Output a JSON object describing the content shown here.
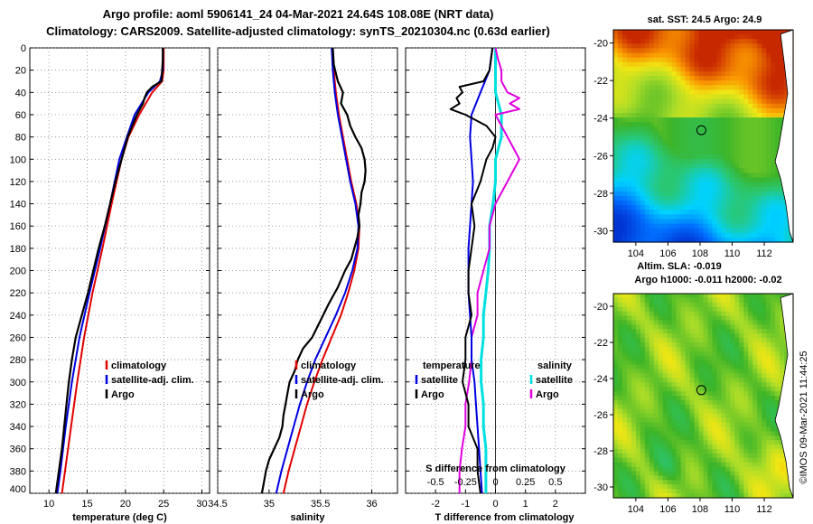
{
  "header": {
    "line1": "Argo profile: aoml 5906141_24 04-Mar-2021 24.64S 108.08E (NRT data)",
    "line2": "Climatology: CARS2009. Satellite-adjusted climatology: synTS_20210304.nc (0.63d earlier)"
  },
  "colors": {
    "climatology": "#e00000",
    "satellite": "#0000e0",
    "argo": "#000000",
    "sat_salinity": "#00e0e0",
    "argo_salinity": "#e000e0"
  },
  "depth_axis": {
    "ticks": [
      "0",
      "20",
      "40",
      "60",
      "80",
      "100",
      "120",
      "140",
      "160",
      "180",
      "200",
      "220",
      "240",
      "260",
      "280",
      "300",
      "320",
      "340",
      "360",
      "380",
      "400"
    ],
    "range": [
      0,
      400
    ]
  },
  "chart_data": [
    {
      "id": "temperature",
      "type": "line",
      "xlabel": "temperature (deg C)",
      "xlim": [
        7.5,
        31
      ],
      "ylim": [
        0,
        400
      ],
      "xticks": [
        10,
        15,
        20,
        25,
        30
      ],
      "xtick_labels": [
        "10",
        "15",
        "20",
        "25",
        "30"
      ],
      "legend": [
        "climatology",
        "satellite-adj. clim.",
        "Argo"
      ],
      "series": [
        {
          "name": "climatology",
          "depth": [
            0,
            20,
            30,
            40,
            60,
            80,
            100,
            140,
            180,
            220,
            260,
            300,
            340,
            380,
            400
          ],
          "values": [
            25.0,
            25.0,
            24.8,
            23.5,
            21.8,
            20.4,
            19.5,
            18.2,
            17.0,
            15.7,
            14.6,
            13.7,
            12.9,
            12.1,
            11.7
          ]
        },
        {
          "name": "satellite-adj. clim.",
          "depth": [
            0,
            20,
            30,
            40,
            60,
            80,
            100,
            140,
            180,
            220,
            260,
            300,
            340,
            380,
            400
          ],
          "values": [
            24.9,
            24.9,
            24.5,
            23.0,
            21.2,
            20.2,
            19.2,
            18.0,
            16.7,
            15.3,
            14.0,
            13.0,
            12.2,
            11.5,
            11.1
          ]
        },
        {
          "name": "Argo",
          "depth": [
            0,
            10,
            20,
            30,
            35,
            40,
            45,
            50,
            55,
            60,
            70,
            80,
            90,
            100,
            120,
            140,
            160,
            180,
            200,
            220,
            240,
            260,
            280,
            300,
            320,
            340,
            360,
            380,
            400
          ],
          "values": [
            24.9,
            24.9,
            24.8,
            24.7,
            23.5,
            22.8,
            22.5,
            22.3,
            21.9,
            21.5,
            20.9,
            20.3,
            19.9,
            19.5,
            18.7,
            18.0,
            17.3,
            16.5,
            15.8,
            15.1,
            14.3,
            13.5,
            13.0,
            12.6,
            12.3,
            12.0,
            11.7,
            11.3,
            10.9
          ]
        }
      ]
    },
    {
      "id": "salinity",
      "type": "line",
      "xlabel": "salinity",
      "xlim": [
        34.5,
        36.25
      ],
      "ylim": [
        0,
        400
      ],
      "xticks": [
        34.5,
        35,
        35.5,
        36
      ],
      "xtick_labels": [
        "34.5",
        "35",
        "35.5",
        "36"
      ],
      "legend": [
        "climatology",
        "satellite-adj. clim.",
        "Argo"
      ],
      "series": [
        {
          "name": "climatology",
          "depth": [
            0,
            20,
            40,
            60,
            80,
            100,
            120,
            140,
            160,
            180,
            200,
            220,
            240,
            260,
            280,
            300,
            320,
            340,
            360,
            380,
            400
          ],
          "values": [
            35.62,
            35.63,
            35.65,
            35.68,
            35.72,
            35.76,
            35.8,
            35.85,
            35.88,
            35.87,
            35.83,
            35.77,
            35.7,
            35.61,
            35.52,
            35.44,
            35.37,
            35.31,
            35.25,
            35.19,
            35.14
          ]
        },
        {
          "name": "satellite-adj. clim.",
          "depth": [
            0,
            20,
            40,
            60,
            80,
            100,
            120,
            140,
            160,
            180,
            200,
            220,
            240,
            260,
            280,
            300,
            320,
            340,
            360,
            380,
            400
          ],
          "values": [
            35.61,
            35.62,
            35.64,
            35.67,
            35.71,
            35.75,
            35.79,
            35.84,
            35.87,
            35.86,
            35.81,
            35.74,
            35.65,
            35.55,
            35.45,
            35.37,
            35.3,
            35.24,
            35.18,
            35.12,
            35.07
          ]
        },
        {
          "name": "Argo",
          "depth": [
            0,
            15,
            30,
            40,
            50,
            60,
            70,
            80,
            90,
            100,
            110,
            120,
            130,
            140,
            150,
            160,
            170,
            180,
            190,
            200,
            215,
            230,
            245,
            260,
            270,
            280,
            290,
            300,
            310,
            320,
            330,
            340,
            350,
            360,
            370,
            380,
            390,
            400
          ],
          "values": [
            35.62,
            35.63,
            35.67,
            35.72,
            35.7,
            35.76,
            35.79,
            35.84,
            35.9,
            35.93,
            35.94,
            35.93,
            35.9,
            35.89,
            35.87,
            35.88,
            35.86,
            35.83,
            35.8,
            35.74,
            35.67,
            35.58,
            35.5,
            35.42,
            35.33,
            35.28,
            35.25,
            35.2,
            35.18,
            35.16,
            35.14,
            35.13,
            35.1,
            35.05,
            35.0,
            34.97,
            34.95,
            34.93
          ]
        }
      ]
    },
    {
      "id": "difference",
      "type": "line",
      "xlabel": "T difference from climatology",
      "xlim": [
        -3.0,
        3.0
      ],
      "ylim": [
        0,
        400
      ],
      "xticks": [
        -2,
        -1,
        0,
        1,
        2
      ],
      "xtick_labels": [
        "-2",
        "-1",
        "0",
        "1",
        "2"
      ],
      "top_axis_label": "S difference from climatology",
      "top_axis_ticks": [
        "-0.5",
        "-0.25",
        "0",
        "0.25",
        "0.5"
      ],
      "legend_temperature_title": "temperature",
      "legend_salinity_title": "salinity",
      "legend_temperature": [
        "satellite",
        "Argo"
      ],
      "legend_salinity": [
        "satellite",
        "Argo"
      ],
      "series": [
        {
          "name": "T satellite",
          "depth": [
            0,
            20,
            40,
            60,
            80,
            100,
            120,
            140,
            160,
            180,
            200,
            220,
            240,
            260,
            280,
            300,
            320,
            340,
            360,
            380,
            400
          ],
          "values": [
            -0.1,
            -0.2,
            -0.5,
            -0.8,
            -0.85,
            -0.8,
            -0.75,
            -0.8,
            -0.85,
            -0.9,
            -0.9,
            -0.9,
            -0.85,
            -0.8,
            -0.8,
            -0.7,
            -0.65,
            -0.6,
            -0.55,
            -0.5,
            -0.45
          ]
        },
        {
          "name": "T Argo",
          "depth": [
            0,
            20,
            30,
            35,
            40,
            45,
            50,
            55,
            60,
            70,
            80,
            90,
            100,
            120,
            140,
            160,
            180,
            200,
            220,
            240,
            260,
            280,
            300,
            320,
            340,
            360,
            380,
            400
          ],
          "values": [
            -0.1,
            -0.2,
            -0.4,
            -1.2,
            -1.1,
            -1.3,
            -1.2,
            -1.5,
            -1.0,
            -0.3,
            0.0,
            -0.1,
            -0.3,
            -0.5,
            -0.8,
            -0.7,
            -0.8,
            -0.9,
            -0.9,
            -0.8,
            -1.0,
            -1.0,
            -1.1,
            -0.9,
            -0.9,
            -0.6,
            -0.6,
            -0.5
          ]
        },
        {
          "name": "S satellite",
          "depth": [
            0,
            20,
            40,
            60,
            80,
            100,
            120,
            140,
            160,
            180,
            200,
            220,
            240,
            260,
            280,
            300,
            320,
            340,
            360,
            380,
            400
          ],
          "values": [
            0.0,
            0.0,
            0.0,
            0.05,
            0.05,
            0.0,
            0.0,
            -0.02,
            -0.05,
            -0.05,
            -0.06,
            -0.08,
            -0.1,
            -0.1,
            -0.12,
            -0.12,
            -0.1,
            -0.1,
            -0.08,
            -0.08,
            -0.08
          ]
        },
        {
          "name": "S Argo",
          "depth": [
            0,
            10,
            20,
            30,
            40,
            45,
            50,
            55,
            60,
            70,
            80,
            90,
            100,
            110,
            120,
            140,
            160,
            180,
            200,
            220,
            240,
            260,
            280,
            300,
            320,
            340,
            360,
            380,
            400
          ],
          "values": [
            0.0,
            0.02,
            0.05,
            0.05,
            0.1,
            0.2,
            0.12,
            0.2,
            0.0,
            0.05,
            0.1,
            0.15,
            0.2,
            0.15,
            0.1,
            0.0,
            -0.05,
            -0.05,
            -0.1,
            -0.15,
            -0.15,
            -0.2,
            -0.2,
            -0.22,
            -0.25,
            -0.25,
            -0.28,
            -0.3,
            -0.3
          ]
        }
      ]
    }
  ],
  "maps": {
    "sst": {
      "title": "sat. SST: 24.5 Argo: 24.9",
      "lat_ticks": [
        "-20",
        "-22",
        "-24",
        "-26",
        "-28",
        "-30"
      ],
      "lon_ticks": [
        "104",
        "106",
        "108",
        "110",
        "112"
      ],
      "marker": {
        "lat": -24.64,
        "lon": 108.08
      }
    },
    "sla": {
      "title1": "Altim. SLA: -0.019",
      "title2": "Argo h1000: -0.011 h2000: -0.02",
      "lat_ticks": [
        "-20",
        "-22",
        "-24",
        "-26",
        "-28",
        "-30"
      ],
      "lon_ticks": [
        "104",
        "106",
        "108",
        "110",
        "112"
      ],
      "marker": {
        "lat": -24.64,
        "lon": 108.08
      }
    }
  },
  "timestamp": "©IMOS 09-Mar-2021 11:44:25"
}
